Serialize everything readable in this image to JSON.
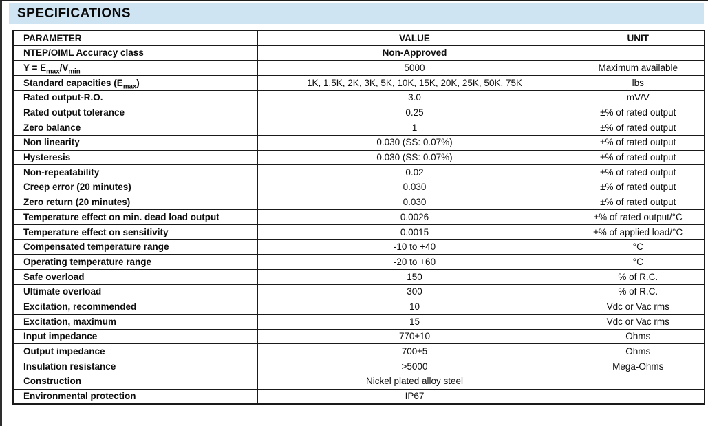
{
  "header": {
    "title": "SPECIFICATIONS",
    "bar_color": "#cfe4f2"
  },
  "table": {
    "columns": [
      "PARAMETER",
      "VALUE",
      "UNIT"
    ],
    "rows": [
      {
        "parameter": "NTEP/OIML Accuracy class",
        "value": "Non-Approved",
        "value_bold": true,
        "unit": ""
      },
      {
        "parameter": "Y = E_{max}/V_{min}",
        "value": "5000",
        "unit": "Maximum available"
      },
      {
        "parameter": "Standard capacities (E_{max})",
        "value": "1K, 1.5K, 2K, 3K, 5K, 10K, 15K, 20K, 25K, 50K, 75K",
        "unit": "lbs"
      },
      {
        "parameter": "Rated output-R.O.",
        "value": "3.0",
        "unit": "mV/V"
      },
      {
        "parameter": "Rated output tolerance",
        "value": "0.25",
        "unit": "±% of rated output"
      },
      {
        "parameter": "Zero balance",
        "value": "1",
        "unit": "±% of rated output"
      },
      {
        "parameter": "Non linearity",
        "value": "0.030 (SS: 0.07%)",
        "unit": "±% of rated output"
      },
      {
        "parameter": "Hysteresis",
        "value": "0.030 (SS: 0.07%)",
        "unit": "±% of rated output"
      },
      {
        "parameter": "Non-repeatability",
        "value": "0.02",
        "unit": "±% of rated output"
      },
      {
        "parameter": "Creep error (20 minutes)",
        "value": "0.030",
        "unit": "±% of rated output"
      },
      {
        "parameter": "Zero return (20 minutes)",
        "value": "0.030",
        "unit": "±% of rated output"
      },
      {
        "parameter": "Temperature effect on min. dead load output",
        "value": "0.0026",
        "unit": "±% of rated output/°C"
      },
      {
        "parameter": "Temperature effect on sensitivity",
        "value": "0.0015",
        "unit": "±% of applied load/°C"
      },
      {
        "parameter": "Compensated temperature range",
        "value": "-10 to +40",
        "unit": "°C"
      },
      {
        "parameter": "Operating temperature range",
        "value": "-20 to +60",
        "unit": "°C"
      },
      {
        "parameter": "Safe overload",
        "value": "150",
        "unit": "% of R.C."
      },
      {
        "parameter": "Ultimate overload",
        "value": "300",
        "unit": "% of R.C."
      },
      {
        "parameter": "Excitation, recommended",
        "value": "10",
        "unit": "Vdc or Vac rms"
      },
      {
        "parameter": "Excitation, maximum",
        "value": "15",
        "unit": "Vdc or Vac rms"
      },
      {
        "parameter": "Input impedance",
        "value": "770±10",
        "unit": "Ohms"
      },
      {
        "parameter": "Output impedance",
        "value": "700±5",
        "unit": "Ohms"
      },
      {
        "parameter": "Insulation resistance",
        "value": ">5000",
        "unit": "Mega-Ohms"
      },
      {
        "parameter": "Construction",
        "value": "Nickel plated alloy steel",
        "unit": ""
      },
      {
        "parameter": "Environmental protection",
        "value": "IP67",
        "unit": ""
      }
    ]
  }
}
